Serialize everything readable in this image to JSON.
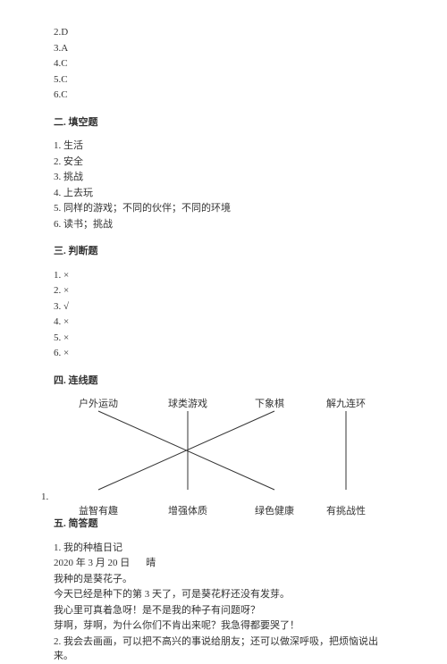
{
  "mc": {
    "items": [
      {
        "num": "2.",
        "ans": "D"
      },
      {
        "num": "3.",
        "ans": "A"
      },
      {
        "num": "4.",
        "ans": "C"
      },
      {
        "num": "5.",
        "ans": "C"
      },
      {
        "num": "6.",
        "ans": "C"
      }
    ]
  },
  "fill": {
    "title": "二. 填空题",
    "items": [
      "1. 生活",
      "2. 安全",
      "3. 挑战",
      "4. 上去玩",
      "5. 同样的游戏；不同的伙伴；不同的环境",
      "6. 读书；挑战"
    ]
  },
  "judge": {
    "title": "三. 判断题",
    "items": [
      "1. ×",
      "2. ×",
      "3. √",
      "4. ×",
      "5. ×",
      "6. ×"
    ]
  },
  "match": {
    "title": "四. 连线题",
    "num": "1.",
    "top": [
      "户外运动",
      "球类游戏",
      "下象棋",
      "解九连环"
    ],
    "bottom": [
      "益智有趣",
      "增强体质",
      "绿色健康",
      "有挑战性"
    ],
    "top_x": [
      28,
      128,
      225,
      305
    ],
    "bottom_x": [
      28,
      128,
      225,
      305
    ],
    "line_color": "#333333",
    "line_width": 1,
    "edges": [
      {
        "from": 0,
        "to": 2
      },
      {
        "from": 1,
        "to": 1
      },
      {
        "from": 2,
        "to": 0
      },
      {
        "from": 3,
        "to": 3
      }
    ]
  },
  "essay": {
    "title": "五. 简答题",
    "lines": [
      "1. 我的种植日记"
    ],
    "date": "2020 年 3 月 20 日",
    "weather": "晴",
    "body": [
      "我种的是葵花子。",
      "今天已经是种下的第 3 天了，可是葵花籽还没有发芽。",
      "我心里可真着急呀！是不是我的种子有问题呀？",
      "芽啊，芽啊，为什么你们不肯出来呢？我急得都要哭了！",
      "2. 我会去画画，可以把不高兴的事说给朋友；还可以做深呼吸，把烦恼说出来。"
    ]
  }
}
